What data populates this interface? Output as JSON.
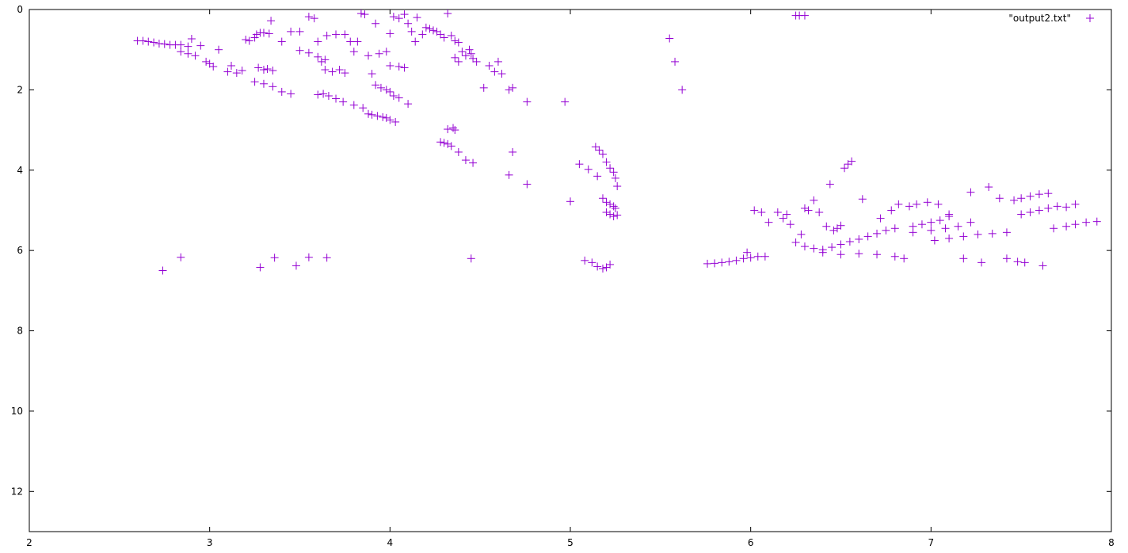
{
  "chart_data": {
    "type": "scatter",
    "title": "",
    "xlabel": "",
    "ylabel": "",
    "xlim": [
      2,
      8
    ],
    "ylim": [
      0,
      13
    ],
    "y_inverted": true,
    "grid": false,
    "legend_position": "top-right",
    "x_ticks": [
      "2",
      "3",
      "4",
      "5",
      "6",
      "7",
      "8"
    ],
    "y_ticks": [
      "0",
      "2",
      "4",
      "6",
      "8",
      "10",
      "12"
    ],
    "series": [
      {
        "name": "\"output2.txt\"",
        "color": "#9400d3",
        "marker": "plus",
        "points": [
          [
            2.6,
            0.78
          ],
          [
            2.63,
            0.78
          ],
          [
            2.66,
            0.8
          ],
          [
            2.69,
            0.82
          ],
          [
            2.72,
            0.85
          ],
          [
            2.75,
            0.86
          ],
          [
            2.78,
            0.88
          ],
          [
            2.81,
            0.88
          ],
          [
            2.74,
            6.5
          ],
          [
            2.84,
            6.17
          ],
          [
            2.84,
            0.88
          ],
          [
            2.88,
            0.92
          ],
          [
            2.9,
            0.73
          ],
          [
            2.84,
            1.05
          ],
          [
            2.88,
            1.1
          ],
          [
            2.92,
            1.15
          ],
          [
            2.95,
            0.9
          ],
          [
            2.98,
            1.3
          ],
          [
            3.0,
            1.35
          ],
          [
            3.02,
            1.42
          ],
          [
            3.05,
            1.0
          ],
          [
            3.1,
            1.55
          ],
          [
            3.12,
            1.4
          ],
          [
            3.15,
            1.58
          ],
          [
            3.18,
            1.52
          ],
          [
            3.2,
            0.75
          ],
          [
            3.22,
            0.78
          ],
          [
            3.25,
            0.7
          ],
          [
            3.26,
            0.62
          ],
          [
            3.28,
            0.58
          ],
          [
            3.3,
            0.58
          ],
          [
            3.33,
            0.6
          ],
          [
            3.34,
            0.28
          ],
          [
            3.27,
            1.45
          ],
          [
            3.3,
            1.5
          ],
          [
            3.32,
            1.48
          ],
          [
            3.35,
            1.52
          ],
          [
            3.25,
            1.8
          ],
          [
            3.3,
            1.85
          ],
          [
            3.35,
            1.92
          ],
          [
            3.4,
            2.05
          ],
          [
            3.45,
            2.1
          ],
          [
            3.28,
            6.42
          ],
          [
            3.36,
            6.18
          ],
          [
            3.48,
            6.38
          ],
          [
            3.55,
            6.17
          ],
          [
            3.65,
            6.18
          ],
          [
            3.4,
            0.8
          ],
          [
            3.45,
            0.55
          ],
          [
            3.5,
            0.55
          ],
          [
            3.5,
            1.02
          ],
          [
            3.55,
            1.08
          ],
          [
            3.6,
            1.18
          ],
          [
            3.62,
            1.3
          ],
          [
            3.64,
            1.25
          ],
          [
            3.6,
            2.12
          ],
          [
            3.63,
            2.1
          ],
          [
            3.66,
            2.15
          ],
          [
            3.7,
            2.22
          ],
          [
            3.74,
            2.3
          ],
          [
            3.8,
            2.38
          ],
          [
            3.85,
            2.45
          ],
          [
            3.88,
            2.6
          ],
          [
            3.9,
            2.62
          ],
          [
            3.93,
            2.65
          ],
          [
            3.96,
            2.68
          ],
          [
            3.98,
            2.7
          ],
          [
            4.0,
            2.75
          ],
          [
            4.03,
            2.8
          ],
          [
            3.55,
            0.18
          ],
          [
            3.58,
            0.22
          ],
          [
            3.6,
            0.8
          ],
          [
            3.65,
            0.65
          ],
          [
            3.7,
            0.62
          ],
          [
            3.75,
            0.62
          ],
          [
            3.64,
            1.5
          ],
          [
            3.68,
            1.55
          ],
          [
            3.72,
            1.5
          ],
          [
            3.75,
            1.58
          ],
          [
            3.78,
            0.8
          ],
          [
            3.8,
            1.05
          ],
          [
            3.82,
            0.8
          ],
          [
            3.84,
            0.1
          ],
          [
            3.86,
            0.12
          ],
          [
            3.88,
            1.15
          ],
          [
            3.9,
            1.6
          ],
          [
            3.92,
            0.35
          ],
          [
            3.92,
            1.88
          ],
          [
            3.95,
            1.95
          ],
          [
            3.98,
            2.0
          ],
          [
            4.0,
            2.05
          ],
          [
            4.02,
            2.15
          ],
          [
            4.05,
            2.2
          ],
          [
            3.94,
            1.1
          ],
          [
            3.98,
            1.05
          ],
          [
            4.0,
            0.6
          ],
          [
            4.02,
            0.18
          ],
          [
            4.05,
            0.22
          ],
          [
            4.0,
            1.4
          ],
          [
            4.05,
            1.42
          ],
          [
            4.08,
            1.45
          ],
          [
            4.08,
            0.12
          ],
          [
            4.1,
            0.35
          ],
          [
            4.12,
            0.55
          ],
          [
            4.14,
            0.8
          ],
          [
            4.15,
            0.2
          ],
          [
            4.18,
            0.62
          ],
          [
            4.2,
            0.45
          ],
          [
            4.22,
            0.48
          ],
          [
            4.24,
            0.52
          ],
          [
            4.26,
            0.55
          ],
          [
            4.28,
            0.62
          ],
          [
            4.3,
            0.7
          ],
          [
            4.32,
            0.1
          ],
          [
            4.34,
            0.65
          ],
          [
            4.36,
            0.78
          ],
          [
            4.38,
            0.82
          ],
          [
            4.1,
            2.35
          ],
          [
            4.28,
            3.3
          ],
          [
            4.3,
            3.32
          ],
          [
            4.32,
            3.35
          ],
          [
            4.34,
            3.4
          ],
          [
            4.32,
            2.98
          ],
          [
            4.35,
            2.95
          ],
          [
            4.36,
            3.0
          ],
          [
            4.38,
            3.55
          ],
          [
            4.42,
            3.75
          ],
          [
            4.46,
            3.82
          ],
          [
            4.4,
            1.05
          ],
          [
            4.42,
            1.15
          ],
          [
            4.44,
            1.0
          ],
          [
            4.45,
            1.1
          ],
          [
            4.46,
            1.22
          ],
          [
            4.48,
            1.3
          ],
          [
            4.36,
            1.2
          ],
          [
            4.38,
            1.3
          ],
          [
            4.45,
            6.2
          ],
          [
            4.52,
            1.95
          ],
          [
            4.55,
            1.4
          ],
          [
            4.58,
            1.55
          ],
          [
            4.6,
            1.3
          ],
          [
            4.62,
            1.6
          ],
          [
            4.66,
            2.0
          ],
          [
            4.68,
            1.95
          ],
          [
            4.66,
            4.12
          ],
          [
            4.68,
            3.55
          ],
          [
            4.76,
            4.35
          ],
          [
            4.76,
            2.3
          ],
          [
            4.97,
            2.3
          ],
          [
            5.0,
            4.78
          ],
          [
            5.05,
            3.85
          ],
          [
            5.1,
            3.98
          ],
          [
            5.14,
            3.42
          ],
          [
            5.16,
            3.5
          ],
          [
            5.18,
            3.6
          ],
          [
            5.2,
            3.8
          ],
          [
            5.22,
            3.95
          ],
          [
            5.24,
            4.05
          ],
          [
            5.25,
            4.2
          ],
          [
            5.26,
            4.4
          ],
          [
            5.15,
            4.15
          ],
          [
            5.18,
            4.7
          ],
          [
            5.2,
            4.8
          ],
          [
            5.22,
            4.85
          ],
          [
            5.24,
            4.9
          ],
          [
            5.25,
            4.95
          ],
          [
            5.2,
            5.05
          ],
          [
            5.22,
            5.1
          ],
          [
            5.24,
            5.15
          ],
          [
            5.26,
            5.12
          ],
          [
            5.08,
            6.25
          ],
          [
            5.12,
            6.3
          ],
          [
            5.15,
            6.4
          ],
          [
            5.18,
            6.45
          ],
          [
            5.2,
            6.42
          ],
          [
            5.22,
            6.35
          ],
          [
            5.55,
            0.72
          ],
          [
            5.58,
            1.3
          ],
          [
            5.62,
            2.0
          ],
          [
            5.76,
            6.33
          ],
          [
            5.8,
            6.32
          ],
          [
            5.84,
            6.3
          ],
          [
            5.88,
            6.28
          ],
          [
            5.92,
            6.25
          ],
          [
            5.96,
            6.2
          ],
          [
            6.0,
            6.18
          ],
          [
            6.04,
            6.15
          ],
          [
            6.08,
            6.15
          ],
          [
            5.98,
            6.05
          ],
          [
            6.02,
            5.0
          ],
          [
            6.06,
            5.05
          ],
          [
            6.1,
            5.3
          ],
          [
            6.15,
            5.05
          ],
          [
            6.18,
            5.2
          ],
          [
            6.2,
            5.1
          ],
          [
            6.22,
            5.35
          ],
          [
            6.25,
            0.15
          ],
          [
            6.27,
            0.15
          ],
          [
            6.3,
            0.15
          ],
          [
            6.25,
            5.8
          ],
          [
            6.28,
            5.6
          ],
          [
            6.3,
            4.95
          ],
          [
            6.32,
            5.0
          ],
          [
            6.35,
            4.75
          ],
          [
            6.38,
            5.05
          ],
          [
            6.42,
            5.4
          ],
          [
            6.44,
            4.35
          ],
          [
            6.46,
            5.5
          ],
          [
            6.48,
            5.45
          ],
          [
            6.5,
            5.38
          ],
          [
            6.52,
            3.95
          ],
          [
            6.54,
            3.85
          ],
          [
            6.56,
            3.78
          ],
          [
            6.62,
            4.72
          ],
          [
            6.3,
            5.9
          ],
          [
            6.35,
            5.95
          ],
          [
            6.4,
            5.98
          ],
          [
            6.45,
            5.92
          ],
          [
            6.5,
            5.85
          ],
          [
            6.55,
            5.78
          ],
          [
            6.6,
            5.72
          ],
          [
            6.65,
            5.65
          ],
          [
            6.7,
            5.58
          ],
          [
            6.75,
            5.5
          ],
          [
            6.8,
            5.45
          ],
          [
            6.4,
            6.05
          ],
          [
            6.5,
            6.1
          ],
          [
            6.6,
            6.08
          ],
          [
            6.7,
            6.1
          ],
          [
            6.8,
            6.15
          ],
          [
            6.85,
            6.2
          ],
          [
            6.72,
            5.2
          ],
          [
            6.78,
            5.0
          ],
          [
            6.82,
            4.85
          ],
          [
            6.88,
            4.9
          ],
          [
            6.92,
            4.85
          ],
          [
            6.98,
            4.8
          ],
          [
            7.04,
            4.85
          ],
          [
            7.1,
            5.15
          ],
          [
            6.9,
            5.4
          ],
          [
            6.95,
            5.35
          ],
          [
            7.0,
            5.3
          ],
          [
            7.05,
            5.25
          ],
          [
            7.1,
            5.1
          ],
          [
            6.9,
            5.55
          ],
          [
            7.0,
            5.5
          ],
          [
            7.08,
            5.45
          ],
          [
            7.15,
            5.4
          ],
          [
            7.22,
            5.3
          ],
          [
            7.02,
            5.75
          ],
          [
            7.1,
            5.7
          ],
          [
            7.18,
            5.65
          ],
          [
            7.26,
            5.6
          ],
          [
            7.34,
            5.58
          ],
          [
            7.42,
            5.55
          ],
          [
            7.18,
            6.2
          ],
          [
            7.28,
            6.3
          ],
          [
            7.32,
            4.42
          ],
          [
            7.22,
            4.55
          ],
          [
            7.38,
            4.7
          ],
          [
            7.42,
            6.2
          ],
          [
            7.48,
            6.28
          ],
          [
            7.52,
            6.3
          ],
          [
            7.46,
            4.75
          ],
          [
            7.5,
            4.7
          ],
          [
            7.55,
            4.65
          ],
          [
            7.6,
            4.6
          ],
          [
            7.65,
            4.58
          ],
          [
            7.5,
            5.1
          ],
          [
            7.55,
            5.05
          ],
          [
            7.6,
            5.0
          ],
          [
            7.65,
            4.95
          ],
          [
            7.7,
            4.9
          ],
          [
            7.75,
            4.92
          ],
          [
            7.8,
            4.85
          ],
          [
            7.62,
            6.38
          ],
          [
            7.68,
            5.45
          ],
          [
            7.75,
            5.4
          ],
          [
            7.8,
            5.35
          ],
          [
            7.86,
            5.3
          ],
          [
            7.92,
            5.28
          ]
        ]
      }
    ]
  }
}
